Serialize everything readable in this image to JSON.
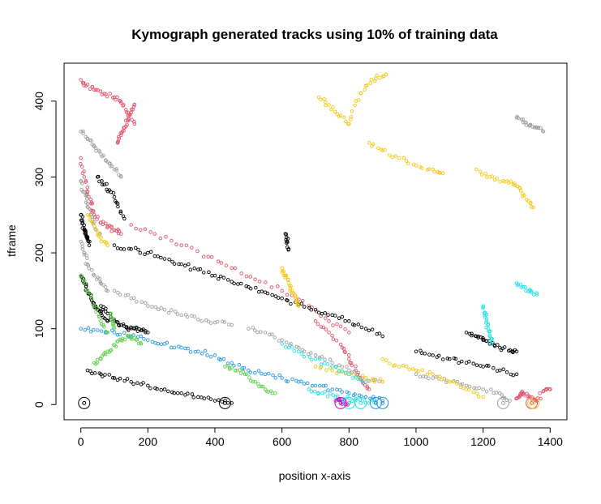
{
  "chart_data": {
    "type": "scatter",
    "title": "Kymograph generated tracks using 10% of training data",
    "xlabel": "position x-axis",
    "ylabel": "tframe",
    "xlim": [
      -50,
      1450
    ],
    "ylim": [
      -20,
      450
    ],
    "x_ticks": [
      "0",
      "200",
      "400",
      "600",
      "800",
      "1000",
      "1200",
      "1400"
    ],
    "y_ticks": [
      "0",
      "100",
      "200",
      "300",
      "400"
    ],
    "grid": false,
    "legend": "none",
    "marker_radius_units": "open circles",
    "colors": {
      "black": "#000000",
      "gray": "#9e9e9e",
      "red": "#df536b",
      "yellow": "#f5c710",
      "cyan": "#28e2e5",
      "blue": "#2297e6",
      "green": "#61d04f",
      "magenta": "#cd0bbc"
    },
    "tracks": [
      {
        "color": "red",
        "x": [
          0,
          15,
          40,
          70,
          100,
          120,
          140,
          160
        ],
        "y": [
          428,
          420,
          415,
          410,
          405,
          398,
          385,
          370
        ]
      },
      {
        "color": "red",
        "x": [
          110,
          120,
          130,
          140,
          150,
          160
        ],
        "y": [
          345,
          355,
          365,
          375,
          385,
          395
        ]
      },
      {
        "color": "red",
        "x": [
          0,
          10,
          20,
          30,
          40,
          60,
          80,
          100,
          120
        ],
        "y": [
          325,
          300,
          280,
          265,
          250,
          240,
          235,
          230,
          225
        ]
      },
      {
        "color": "red",
        "x": [
          150,
          220,
          300,
          380,
          450,
          520,
          600,
          680,
          740,
          800
        ],
        "y": [
          237,
          225,
          210,
          195,
          180,
          165,
          150,
          130,
          110,
          95
        ]
      },
      {
        "color": "red",
        "x": [
          700,
          740,
          780,
          800,
          820,
          840,
          860
        ],
        "y": [
          110,
          95,
          75,
          60,
          45,
          30,
          20
        ]
      },
      {
        "color": "red",
        "x": [
          1300,
          1310,
          1320,
          1340,
          1360,
          1380,
          1400
        ],
        "y": [
          8,
          12,
          15,
          10,
          5,
          18,
          20
        ]
      },
      {
        "color": "gray",
        "x": [
          0,
          20,
          40,
          60,
          80,
          100,
          120
        ],
        "y": [
          360,
          350,
          340,
          330,
          320,
          310,
          300
        ]
      },
      {
        "color": "gray",
        "x": [
          0,
          10,
          20,
          30,
          40,
          60
        ],
        "y": [
          295,
          280,
          265,
          250,
          235,
          220
        ]
      },
      {
        "color": "gray",
        "x": [
          0,
          10,
          20,
          40,
          60,
          80
        ],
        "y": [
          215,
          200,
          185,
          170,
          160,
          150
        ]
      },
      {
        "color": "gray",
        "x": [
          100,
          150,
          200,
          250,
          300,
          350,
          400,
          450
        ],
        "y": [
          150,
          140,
          130,
          125,
          118,
          112,
          108,
          105
        ]
      },
      {
        "color": "gray",
        "x": [
          500,
          550,
          600,
          650,
          700,
          750,
          800,
          850,
          900
        ],
        "y": [
          100,
          95,
          85,
          75,
          65,
          55,
          45,
          35,
          30
        ]
      },
      {
        "color": "gray",
        "x": [
          1000,
          1050,
          1100,
          1150,
          1200,
          1250,
          1280
        ],
        "y": [
          40,
          35,
          30,
          25,
          20,
          15,
          5
        ]
      },
      {
        "color": "gray",
        "x": [
          1300,
          1320,
          1340,
          1360,
          1380
        ],
        "y": [
          378,
          372,
          368,
          365,
          360
        ]
      },
      {
        "color": "black",
        "x": [
          0,
          5,
          10,
          15,
          20,
          25
        ],
        "y": [
          250,
          240,
          230,
          225,
          220,
          210
        ]
      },
      {
        "color": "black",
        "x": [
          0,
          10,
          20,
          30,
          40,
          50,
          60,
          80
        ],
        "y": [
          170,
          160,
          150,
          140,
          130,
          125,
          120,
          110
        ]
      },
      {
        "color": "black",
        "x": [
          50,
          70,
          90,
          110,
          130
        ],
        "y": [
          300,
          290,
          280,
          265,
          245
        ]
      },
      {
        "color": "black",
        "x": [
          100,
          150,
          200,
          250,
          300,
          350,
          400,
          450,
          500,
          550,
          600,
          650,
          700,
          750,
          800,
          850,
          900
        ],
        "y": [
          210,
          205,
          200,
          192,
          185,
          178,
          170,
          162,
          155,
          148,
          140,
          132,
          125,
          118,
          110,
          100,
          90
        ]
      },
      {
        "color": "black",
        "x": [
          60,
          80,
          100,
          120,
          140,
          160,
          180,
          200
        ],
        "y": [
          130,
          120,
          110,
          105,
          100,
          100,
          98,
          95
        ]
      },
      {
        "color": "black",
        "x": [
          20,
          60,
          100,
          150,
          200,
          250,
          300,
          350,
          400,
          450
        ],
        "y": [
          45,
          40,
          35,
          30,
          25,
          20,
          15,
          10,
          5,
          2
        ]
      },
      {
        "color": "black",
        "x": [
          1000,
          1050,
          1100,
          1150,
          1200,
          1250,
          1300
        ],
        "y": [
          70,
          65,
          60,
          55,
          50,
          45,
          40
        ]
      },
      {
        "color": "black",
        "x": [
          1150,
          1180,
          1200,
          1220,
          1250,
          1280,
          1300
        ],
        "y": [
          95,
          90,
          85,
          80,
          75,
          72,
          70
        ]
      },
      {
        "color": "black",
        "x": [
          610,
          615,
          620
        ],
        "y": [
          225,
          215,
          205
        ]
      },
      {
        "color": "yellow",
        "x": [
          710,
          740,
          770,
          800,
          820,
          850,
          880,
          910
        ],
        "y": [
          405,
          395,
          380,
          370,
          400,
          420,
          430,
          435
        ]
      },
      {
        "color": "yellow",
        "x": [
          860,
          900,
          950,
          1000,
          1050,
          1080
        ],
        "y": [
          345,
          335,
          325,
          315,
          310,
          305
        ]
      },
      {
        "color": "yellow",
        "x": [
          1180,
          1220,
          1260,
          1290,
          1310,
          1330,
          1350
        ],
        "y": [
          310,
          300,
          295,
          290,
          285,
          270,
          260
        ]
      },
      {
        "color": "yellow",
        "x": [
          20,
          40,
          60,
          80
        ],
        "y": [
          250,
          235,
          220,
          210
        ]
      },
      {
        "color": "yellow",
        "x": [
          600,
          610,
          620,
          630,
          640,
          650
        ],
        "y": [
          180,
          170,
          160,
          150,
          140,
          130
        ]
      },
      {
        "color": "yellow",
        "x": [
          900,
          950,
          1000,
          1050,
          1100,
          1150,
          1200
        ],
        "y": [
          60,
          50,
          45,
          40,
          30,
          20,
          10
        ]
      },
      {
        "color": "yellow",
        "x": [
          700,
          750,
          800,
          850,
          900
        ],
        "y": [
          50,
          45,
          40,
          35,
          30
        ]
      },
      {
        "color": "cyan",
        "x": [
          1200,
          1205,
          1210,
          1215,
          1220,
          1225
        ],
        "y": [
          130,
          120,
          110,
          100,
          90,
          80
        ]
      },
      {
        "color": "cyan",
        "x": [
          1300,
          1320,
          1340,
          1360
        ],
        "y": [
          160,
          155,
          150,
          145
        ]
      },
      {
        "color": "cyan",
        "x": [
          600,
          650,
          700,
          750,
          800,
          850
        ],
        "y": [
          80,
          70,
          60,
          50,
          40,
          30
        ]
      },
      {
        "color": "cyan",
        "x": [
          680,
          720,
          760,
          800,
          840,
          880
        ],
        "y": [
          20,
          15,
          10,
          8,
          5,
          3
        ]
      },
      {
        "color": "blue",
        "x": [
          0,
          50,
          100,
          150,
          200,
          250,
          300,
          350,
          400,
          450,
          500,
          550,
          600,
          650,
          700,
          750,
          800,
          850,
          900
        ],
        "y": [
          100,
          98,
          95,
          90,
          85,
          80,
          75,
          70,
          65,
          55,
          45,
          40,
          35,
          30,
          25,
          20,
          15,
          10,
          5
        ]
      },
      {
        "color": "green",
        "x": [
          0,
          20,
          40,
          60,
          80
        ],
        "y": [
          170,
          150,
          130,
          110,
          95
        ]
      },
      {
        "color": "green",
        "x": [
          40,
          60,
          80,
          100,
          120,
          140,
          160,
          180
        ],
        "y": [
          55,
          60,
          70,
          78,
          85,
          90,
          88,
          80
        ]
      },
      {
        "color": "green",
        "x": [
          430,
          460,
          490,
          520,
          550,
          580
        ],
        "y": [
          50,
          45,
          40,
          30,
          20,
          15
        ]
      },
      {
        "color": "green",
        "x": [
          90,
          95,
          100
        ],
        "y": [
          120,
          110,
          100
        ]
      },
      {
        "color": "magenta",
        "x": [
          760,
          780,
          800
        ],
        "y": [
          5,
          3,
          2
        ]
      }
    ],
    "start_markers": [
      {
        "x": 10,
        "y": 2,
        "color": "black"
      },
      {
        "x": 430,
        "y": 2,
        "color": "black"
      },
      {
        "x": 775,
        "y": 2,
        "color": "magenta"
      },
      {
        "x": 800,
        "y": 2,
        "color": "cyan"
      },
      {
        "x": 835,
        "y": 2,
        "color": "cyan"
      },
      {
        "x": 880,
        "y": 2,
        "color": "blue"
      },
      {
        "x": 900,
        "y": 2,
        "color": "blue"
      },
      {
        "x": 1260,
        "y": 2,
        "color": "gray"
      },
      {
        "x": 1345,
        "y": 2,
        "color": "red"
      },
      {
        "x": 1350,
        "y": 2,
        "color": "yellow"
      }
    ]
  }
}
